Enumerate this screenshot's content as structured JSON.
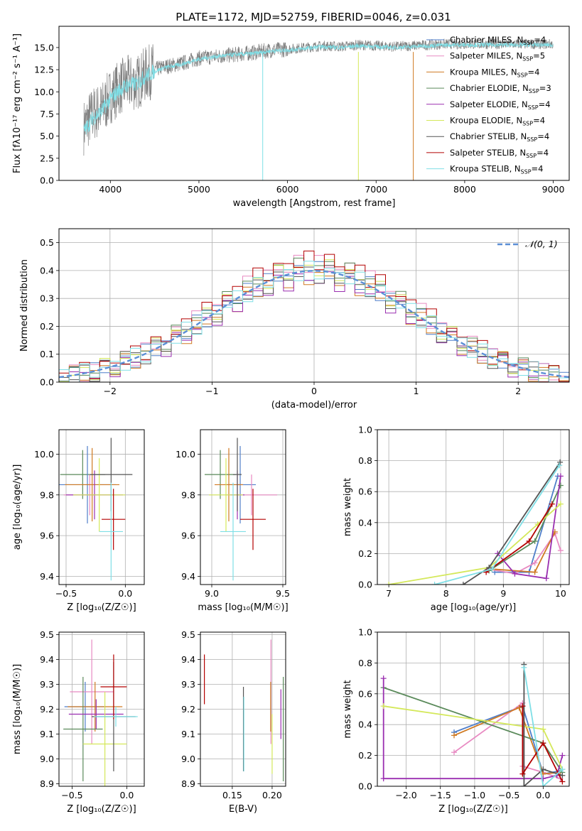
{
  "figure": {
    "title": "PLATE=1172, MJD=52759, FIBERID=0046, z=0.031"
  },
  "legend_main": [
    {
      "label": "Chabrier MILES, N",
      "sub": "SSP",
      "tail": "=4",
      "color": "#4f7ec9"
    },
    {
      "label": "Salpeter MILES, N",
      "sub": "SSP",
      "tail": "=5",
      "color": "#e88ac2"
    },
    {
      "label": "Kroupa MILES, N",
      "sub": "SSP",
      "tail": "=4",
      "color": "#d07a22"
    },
    {
      "label": "Chabrier ELODIE, N",
      "sub": "SSP",
      "tail": "=3",
      "color": "#5a8a5a"
    },
    {
      "label": "Salpeter ELODIE, N",
      "sub": "SSP",
      "tail": "=4",
      "color": "#9a2fb0"
    },
    {
      "label": "Kroupa ELODIE, N",
      "sub": "SSP",
      "tail": "=4",
      "color": "#d4e85a"
    },
    {
      "label": "Chabrier STELIB, N",
      "sub": "SSP",
      "tail": "=4",
      "color": "#555555"
    },
    {
      "label": "Salpeter STELIB, N",
      "sub": "SSP",
      "tail": "=4",
      "color": "#b30000"
    },
    {
      "label": "Kroupa STELIB, N",
      "sub": "SSP",
      "tail": "=4",
      "color": "#7fdfe6"
    }
  ],
  "chart_data": [
    {
      "id": "spectrum",
      "type": "line",
      "xlabel": "wavelength [Angstrom, rest frame]",
      "ylabel": "Flux [fλ10⁻¹⁷ erg cm⁻² s⁻¹ A⁻¹]",
      "xlim": [
        3420,
        9180
      ],
      "ylim": [
        0,
        17.4
      ],
      "xticks": [
        4000,
        5000,
        6000,
        7000,
        8000,
        9000
      ],
      "yticks": [
        0.0,
        2.5,
        5.0,
        7.5,
        10.0,
        12.5,
        15.0
      ],
      "series": [
        {
          "name": "data",
          "color": "#808080",
          "x": [
            3700,
            3800,
            3900,
            4000,
            4100,
            4200,
            4300,
            4400,
            4500,
            4600,
            4800,
            5000,
            5200,
            5400,
            5600,
            5800,
            6000,
            6200,
            6400,
            6600,
            6800,
            7000,
            7200,
            7400,
            7600,
            7800,
            8000,
            8200,
            8400,
            8600,
            8800,
            9000
          ],
          "y": [
            6.0,
            7.5,
            8.0,
            9.5,
            10.5,
            11.0,
            11.0,
            12.0,
            12.5,
            12.8,
            13.2,
            13.8,
            14.0,
            14.2,
            14.4,
            14.7,
            14.8,
            15.0,
            15.2,
            15.1,
            15.3,
            15.2,
            15.1,
            15.2,
            15.3,
            15.4,
            15.4,
            15.4,
            15.4,
            15.4,
            15.4,
            15.4
          ]
        },
        {
          "name": "model",
          "color": "#7fdfe6",
          "x": [
            3700,
            3800,
            3900,
            4000,
            4100,
            4200,
            4300,
            4400,
            4500,
            4600,
            4800,
            5000,
            5200,
            5400,
            5600,
            5800,
            6000,
            6200,
            6400,
            6600,
            6800,
            7000,
            7200,
            7400,
            7600,
            7800,
            8000,
            8200,
            8400,
            8600,
            8800,
            9000
          ],
          "y": [
            5.5,
            7.0,
            7.8,
            9.2,
            10.2,
            10.8,
            10.9,
            11.8,
            12.3,
            12.7,
            13.1,
            13.7,
            14.0,
            14.2,
            14.3,
            14.6,
            14.7,
            14.9,
            15.1,
            15.0,
            15.2,
            15.1,
            15.0,
            15.1,
            15.2,
            15.3,
            15.3,
            15.3,
            15.3,
            15.3,
            15.3,
            15.3
          ]
        }
      ],
      "drops": [
        {
          "x": 5720,
          "color": "#7fdfe6"
        },
        {
          "x": 6800,
          "color": "#d4e85a"
        },
        {
          "x": 7420,
          "color": "#d07a22"
        }
      ]
    },
    {
      "id": "residuals",
      "type": "histogram",
      "xlabel": "(data-model)/error",
      "ylabel": "Normed distribution",
      "xlim": [
        -2.5,
        2.5
      ],
      "ylim": [
        0,
        0.55
      ],
      "xticks": [
        -2,
        -1,
        0,
        1,
        2
      ],
      "yticks": [
        0.0,
        0.1,
        0.2,
        0.3,
        0.4,
        0.5
      ],
      "bin_width": 0.1,
      "reference_label": "𝒩(0, 1)",
      "reference_color": "#5b8fd6",
      "series": [
        {
          "name": "Chabrier MILES",
          "color": "#4f7ec9",
          "offset": 0.0
        },
        {
          "name": "Salpeter MILES",
          "color": "#e88ac2",
          "offset": 0.03
        },
        {
          "name": "Kroupa MILES",
          "color": "#d07a22",
          "offset": -0.02
        },
        {
          "name": "Chabrier ELODIE",
          "color": "#5a8a5a",
          "offset": 0.02
        },
        {
          "name": "Salpeter ELODIE",
          "color": "#9a2fb0",
          "offset": -0.03
        },
        {
          "name": "Kroupa ELODIE",
          "color": "#d4e85a",
          "offset": 0.01
        },
        {
          "name": "Chabrier STELIB",
          "color": "#555555",
          "offset": -0.01
        },
        {
          "name": "Salpeter STELIB",
          "color": "#b30000",
          "offset": 0.04
        },
        {
          "name": "Kroupa STELIB",
          "color": "#7fdfe6",
          "offset": 0.0
        }
      ]
    },
    {
      "id": "age_vs_Z",
      "type": "errorbar",
      "xlabel": "Z [log₁₀(Z/Z☉)]",
      "ylabel": "age  [log₁₀(age/yr)]",
      "xlim": [
        -0.56,
        0.16
      ],
      "ylim": [
        9.36,
        10.12
      ],
      "xticks": [
        -0.5,
        0.0
      ],
      "xticklabels": [
        "−0.5",
        "0.0"
      ],
      "yticks": [
        9.4,
        9.6,
        9.8,
        10.0
      ],
      "points": [
        {
          "x": -0.36,
          "y": 9.9,
          "xerr": 0.19,
          "yerr": 0.12,
          "color": "#5a8a5a"
        },
        {
          "x": -0.32,
          "y": 9.85,
          "xerr": 0.24,
          "yerr": 0.19,
          "color": "#4f7ec9"
        },
        {
          "x": -0.3,
          "y": 9.8,
          "xerr": 0.22,
          "yerr": 0.1,
          "color": "#e88ac2"
        },
        {
          "x": -0.28,
          "y": 9.85,
          "xerr": 0.23,
          "yerr": 0.18,
          "color": "#d07a22"
        },
        {
          "x": -0.26,
          "y": 9.8,
          "xerr": 0.24,
          "yerr": 0.12,
          "color": "#9a2fb0"
        },
        {
          "x": -0.22,
          "y": 9.8,
          "xerr": 0.22,
          "yerr": 0.18,
          "color": "#d4e85a"
        },
        {
          "x": -0.12,
          "y": 9.9,
          "xerr": 0.18,
          "yerr": 0.18,
          "color": "#555555"
        },
        {
          "x": -0.1,
          "y": 9.68,
          "xerr": 0.1,
          "yerr": 0.15,
          "color": "#b30000"
        },
        {
          "x": -0.12,
          "y": 9.62,
          "xerr": 0.1,
          "yerr": 0.24,
          "color": "#7fdfe6"
        }
      ]
    },
    {
      "id": "age_vs_mass",
      "type": "errorbar",
      "xlabel": "mass [log₁₀(M/M☉)]",
      "ylabel": "",
      "xlim": [
        8.92,
        9.52
      ],
      "ylim": [
        9.36,
        10.12
      ],
      "xticks": [
        9.0,
        9.5
      ],
      "yticks": [
        9.4,
        9.6,
        9.8,
        10.0
      ],
      "points": [
        {
          "x": 9.06,
          "y": 9.9,
          "xerr": 0.11,
          "yerr": 0.12,
          "color": "#5a8a5a"
        },
        {
          "x": 9.2,
          "y": 9.85,
          "xerr": 0.11,
          "yerr": 0.19,
          "color": "#4f7ec9"
        },
        {
          "x": 9.28,
          "y": 9.8,
          "xerr": 0.18,
          "yerr": 0.1,
          "color": "#e88ac2"
        },
        {
          "x": 9.12,
          "y": 9.85,
          "xerr": 0.1,
          "yerr": 0.18,
          "color": "#d07a22"
        },
        {
          "x": 9.18,
          "y": 9.8,
          "xerr": 0.05,
          "yerr": 0.12,
          "color": "#9a2fb0"
        },
        {
          "x": 9.1,
          "y": 9.8,
          "xerr": 0.12,
          "yerr": 0.18,
          "color": "#d4e85a"
        },
        {
          "x": 9.18,
          "y": 9.9,
          "xerr": 0.03,
          "yerr": 0.18,
          "color": "#555555"
        },
        {
          "x": 9.29,
          "y": 9.68,
          "xerr": 0.09,
          "yerr": 0.15,
          "color": "#b30000"
        },
        {
          "x": 9.15,
          "y": 9.62,
          "xerr": 0.09,
          "yerr": 0.24,
          "color": "#7fdfe6"
        }
      ]
    },
    {
      "id": "weight_vs_age",
      "type": "line",
      "xlabel": "age  [log₁₀(age/yr)]",
      "ylabel": "mass weight",
      "xlim": [
        6.8,
        10.15
      ],
      "ylim": [
        0,
        1.0
      ],
      "xticks": [
        7,
        8,
        9,
        10
      ],
      "yticks": [
        0.0,
        0.2,
        0.4,
        0.6,
        0.8,
        1.0
      ],
      "series": [
        {
          "name": "Chabrier MILES",
          "color": "#4f7ec9",
          "x": [
            8.85,
            9.45,
            9.95
          ],
          "y": [
            0.08,
            0.08,
            0.7
          ]
        },
        {
          "name": "Salpeter MILES",
          "color": "#e88ac2",
          "x": [
            8.75,
            9.2,
            9.55,
            9.9,
            10.0
          ],
          "y": [
            0.1,
            0.07,
            0.14,
            0.33,
            0.22
          ]
        },
        {
          "name": "Kroupa MILES",
          "color": "#d07a22",
          "x": [
            8.8,
            9.55,
            9.9
          ],
          "y": [
            0.1,
            0.08,
            0.34
          ]
        },
        {
          "name": "Chabrier ELODIE",
          "color": "#5a8a5a",
          "x": [
            8.75,
            9.55,
            10.0
          ],
          "y": [
            0.09,
            0.28,
            0.64
          ]
        },
        {
          "name": "Salpeter ELODIE",
          "color": "#9a2fb0",
          "x": [
            8.9,
            9.2,
            9.75,
            10.0
          ],
          "y": [
            0.2,
            0.07,
            0.04,
            0.7
          ]
        },
        {
          "name": "Kroupa ELODIE",
          "color": "#d4e85a",
          "x": [
            7.0,
            8.75,
            9.6,
            10.0
          ],
          "y": [
            0.0,
            0.11,
            0.39,
            0.52
          ]
        },
        {
          "name": "Chabrier STELIB",
          "color": "#555555",
          "x": [
            8.3,
            8.75,
            9.99
          ],
          "y": [
            0.0,
            0.11,
            0.79
          ]
        },
        {
          "name": "Salpeter STELIB",
          "color": "#b30000",
          "x": [
            8.7,
            9.45,
            9.85
          ],
          "y": [
            0.08,
            0.28,
            0.52
          ]
        },
        {
          "name": "Kroupa STELIB",
          "color": "#7fdfe6",
          "x": [
            7.8,
            8.8,
            9.98
          ],
          "y": [
            0.0,
            0.1,
            0.77
          ]
        }
      ]
    },
    {
      "id": "mass_vs_Z",
      "type": "errorbar",
      "xlabel": "Z [log₁₀(Z/Z☉)]",
      "ylabel": "mass [log₁₀(M/M☉)]",
      "xlim": [
        -0.62,
        0.16
      ],
      "ylim": [
        8.89,
        9.51
      ],
      "xticks": [
        -0.5,
        0.0
      ],
      "xticklabels": [
        "−0.5",
        "0.0"
      ],
      "yticks": [
        8.9,
        9.0,
        9.1,
        9.2,
        9.3,
        9.4,
        9.5
      ],
      "points": [
        {
          "x": -0.38,
          "y": 9.21,
          "xerr": 0.19,
          "yerr": 0.1,
          "color": "#4f7ec9"
        },
        {
          "x": -0.32,
          "y": 9.27,
          "xerr": 0.2,
          "yerr": 0.21,
          "color": "#e88ac2"
        },
        {
          "x": -0.29,
          "y": 9.21,
          "xerr": 0.25,
          "yerr": 0.1,
          "color": "#d07a22"
        },
        {
          "x": -0.4,
          "y": 9.12,
          "xerr": 0.18,
          "yerr": 0.21,
          "color": "#5a8a5a"
        },
        {
          "x": -0.28,
          "y": 9.18,
          "xerr": 0.25,
          "yerr": 0.06,
          "color": "#9a2fb0"
        },
        {
          "x": -0.2,
          "y": 9.06,
          "xerr": 0.2,
          "yerr": 0.21,
          "color": "#d4e85a"
        },
        {
          "x": -0.12,
          "y": 9.17,
          "xerr": 0.2,
          "yerr": 0.22,
          "color": "#555555"
        },
        {
          "x": -0.12,
          "y": 9.29,
          "xerr": 0.12,
          "yerr": 0.13,
          "color": "#b30000"
        },
        {
          "x": -0.1,
          "y": 9.17,
          "xerr": 0.2,
          "yerr": 0.04,
          "color": "#7fdfe6"
        }
      ]
    },
    {
      "id": "mass_vs_ebv",
      "type": "errorbar",
      "xlabel": "E(B-V)",
      "ylabel": "",
      "xlim": [
        0.11,
        0.217
      ],
      "ylim": [
        8.89,
        9.51
      ],
      "xticks": [
        0.15,
        0.2
      ],
      "yticks": [
        8.9,
        9.0,
        9.1,
        9.2,
        9.3,
        9.4,
        9.5
      ],
      "points": [
        {
          "x": 0.1985,
          "y": 9.21,
          "xerr": 0.0,
          "yerr": 0.1,
          "color": "#4f7ec9"
        },
        {
          "x": 0.1985,
          "y": 9.27,
          "xerr": 0.0,
          "yerr": 0.21,
          "color": "#e88ac2"
        },
        {
          "x": 0.1982,
          "y": 9.21,
          "xerr": 0.0,
          "yerr": 0.1,
          "color": "#d07a22"
        },
        {
          "x": 0.214,
          "y": 9.12,
          "xerr": 0.0,
          "yerr": 0.21,
          "color": "#5a8a5a"
        },
        {
          "x": 0.211,
          "y": 9.18,
          "xerr": 0.0,
          "yerr": 0.1,
          "color": "#9a2fb0"
        },
        {
          "x": 0.2,
          "y": 9.06,
          "xerr": 0.0,
          "yerr": 0.12,
          "color": "#d4e85a"
        },
        {
          "x": 0.164,
          "y": 9.12,
          "xerr": 0.0,
          "yerr": 0.17,
          "color": "#555555"
        },
        {
          "x": 0.115,
          "y": 9.32,
          "xerr": 0.0,
          "yerr": 0.1,
          "color": "#b30000"
        },
        {
          "x": 0.1645,
          "y": 9.1,
          "xerr": 0.0,
          "yerr": 0.15,
          "color": "#7fdfe6"
        }
      ]
    },
    {
      "id": "weight_vs_Z",
      "type": "line",
      "xlabel": "Z [log₁₀(Z/Z☉)]",
      "ylabel": "mass weight",
      "xlim": [
        -2.42,
        0.38
      ],
      "ylim": [
        0,
        1.0
      ],
      "xticks": [
        -2.0,
        -1.5,
        -1.0,
        -0.5,
        0.0
      ],
      "xticklabels": [
        "−2.0",
        "−1.5",
        "−1.0",
        "−0.5",
        "0.0"
      ],
      "yticks": [
        0.0,
        0.2,
        0.4,
        0.6,
        0.8,
        1.0
      ],
      "series": [
        {
          "name": "Chabrier MILES",
          "color": "#4f7ec9",
          "x": [
            -1.3,
            -0.3,
            0.0,
            0.25
          ],
          "y": [
            0.35,
            0.52,
            0.08,
            0.1
          ]
        },
        {
          "name": "Salpeter MILES",
          "color": "#e88ac2",
          "x": [
            -1.3,
            -0.3,
            -0.3,
            0.0,
            0.25
          ],
          "y": [
            0.22,
            0.54,
            0.13,
            0.09,
            0.05
          ]
        },
        {
          "name": "Kroupa MILES",
          "color": "#d07a22",
          "x": [
            -1.3,
            -0.35,
            0.0,
            0.25
          ],
          "y": [
            0.33,
            0.51,
            0.08,
            0.09
          ]
        },
        {
          "name": "Chabrier ELODIE",
          "color": "#5a8a5a",
          "x": [
            -2.33,
            0.0,
            0.28
          ],
          "y": [
            0.64,
            0.28,
            0.09
          ]
        },
        {
          "name": "Salpeter ELODIE",
          "color": "#9a2fb0",
          "x": [
            -2.33,
            -2.33,
            0.0,
            0.2,
            0.28
          ],
          "y": [
            0.7,
            0.05,
            0.05,
            0.07,
            0.2
          ]
        },
        {
          "name": "Kroupa ELODIE",
          "color": "#d4e85a",
          "x": [
            -2.33,
            0.0,
            0.28
          ],
          "y": [
            0.52,
            0.37,
            0.11
          ]
        },
        {
          "name": "Chabrier STELIB",
          "color": "#555555",
          "x": [
            -0.28,
            -0.28,
            0.0,
            0.28
          ],
          "y": [
            0.79,
            0.0,
            0.11,
            0.07
          ]
        },
        {
          "name": "Salpeter STELIB",
          "color": "#b30000",
          "x": [
            -0.3,
            -0.3,
            0.0,
            0.28
          ],
          "y": [
            0.52,
            0.08,
            0.28,
            0.03
          ]
        },
        {
          "name": "Kroupa STELIB",
          "color": "#7fdfe6",
          "x": [
            -0.28,
            0.0,
            0.28
          ],
          "y": [
            0.77,
            0.0,
            0.11
          ]
        }
      ]
    }
  ]
}
